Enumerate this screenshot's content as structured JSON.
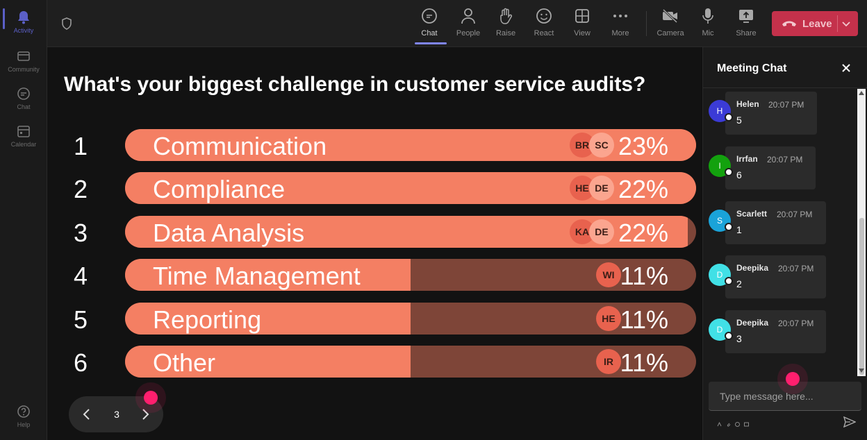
{
  "rail": {
    "items": [
      {
        "label": "Activity",
        "icon": "bell-icon",
        "active": true
      },
      {
        "label": "Community",
        "icon": "community-icon",
        "active": false
      },
      {
        "label": "Chat",
        "icon": "chat-icon",
        "active": false
      },
      {
        "label": "Calendar",
        "icon": "calendar-icon",
        "active": false
      },
      {
        "label": "Help",
        "icon": "help-icon",
        "active": false
      }
    ]
  },
  "toolbar": {
    "chat": "Chat",
    "people": "People",
    "raise": "Raise",
    "react": "React",
    "view": "View",
    "more": "More",
    "camera": "Camera",
    "mic": "Mic",
    "share": "Share",
    "leave": "Leave"
  },
  "poll": {
    "question": "What's your biggest challenge in customer service audits?",
    "options": [
      {
        "num": "1",
        "label": "Communication",
        "pct": "23%",
        "fill": 1.0,
        "avatars": [
          "BR",
          "SC"
        ]
      },
      {
        "num": "2",
        "label": "Compliance",
        "pct": "22%",
        "fill": 1.0,
        "avatars": [
          "HE",
          "DE"
        ]
      },
      {
        "num": "3",
        "label": "Data Analysis",
        "pct": "22%",
        "fill": 0.985,
        "avatars": [
          "KA",
          "DE"
        ]
      },
      {
        "num": "4",
        "label": "Time Management",
        "pct": "11%",
        "fill": 0.5,
        "avatars": [
          "WI"
        ]
      },
      {
        "num": "5",
        "label": "Reporting",
        "pct": "11%",
        "fill": 0.5,
        "avatars": [
          "HE"
        ]
      },
      {
        "num": "6",
        "label": "Other",
        "pct": "11%",
        "fill": 0.5,
        "avatars": [
          "IR"
        ]
      }
    ]
  },
  "pager": {
    "page": "3"
  },
  "chat": {
    "title": "Meeting Chat",
    "input_placeholder": "Type message here...",
    "messages": [
      {
        "initial": "H",
        "name": "Helen",
        "time": "20:07 PM",
        "text": "5",
        "color": "#3b3bd6"
      },
      {
        "initial": "I",
        "name": "Irrfan",
        "time": "20:07 PM",
        "text": "6",
        "color": "#13a10e"
      },
      {
        "initial": "S",
        "name": "Scarlett",
        "time": "20:07 PM",
        "text": "1",
        "color": "#1aa3d9"
      },
      {
        "initial": "D",
        "name": "Deepika",
        "time": "20:07 PM",
        "text": "2",
        "color": "#41e0e6"
      },
      {
        "initial": "D",
        "name": "Deepika",
        "time": "20:07 PM",
        "text": "3",
        "color": "#41e0e6"
      }
    ]
  },
  "colors": {
    "bar_fill": "#f47f63",
    "bar_track": "#7e4538",
    "leave": "#c4314b",
    "accent": "#5b5fc7",
    "cursor": "#ff1f6e"
  }
}
